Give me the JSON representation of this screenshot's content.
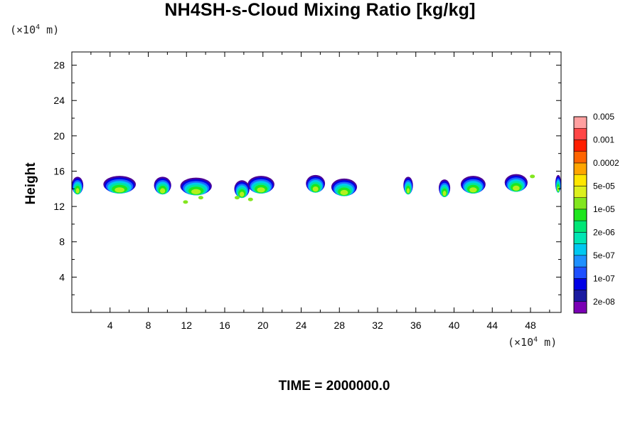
{
  "chart_data": {
    "type": "heatmap",
    "title": "NH4SH-s-Cloud Mixing Ratio [kg/kg]",
    "ylabel": "Height",
    "xunit": {
      "prefix": "(×10",
      "exp": "4",
      "suffix": " m)"
    },
    "yunit": {
      "prefix": "(×10",
      "exp": "4",
      "suffix": " m)"
    },
    "xlim": [
      0,
      51.2
    ],
    "ylim": [
      0,
      29.5
    ],
    "xticks": [
      4,
      8,
      12,
      16,
      20,
      24,
      28,
      32,
      36,
      40,
      44,
      48
    ],
    "yticks": [
      4,
      8,
      12,
      16,
      20,
      24,
      28
    ],
    "time_label": "TIME = 2000000.0",
    "colorbar": {
      "colors": [
        "#7a00b4",
        "#1a1aa0",
        "#0000e6",
        "#1e50ff",
        "#1e90ff",
        "#00c8f0",
        "#00e6b4",
        "#00e676",
        "#1ee61e",
        "#82e61e",
        "#dcf01e",
        "#ffe600",
        "#ffa500",
        "#ff6400",
        "#ff1e00",
        "#ff4646",
        "#ffa0a0"
      ],
      "labels": [
        "2e-08",
        "1e-07",
        "5e-07",
        "2e-06",
        "1e-05",
        "5e-05",
        "0.0002",
        "0.001",
        "0.005"
      ]
    },
    "clouds": [
      {
        "x": 0.6,
        "y": 14.4,
        "w": 1.2
      },
      {
        "x": 5.0,
        "y": 14.5,
        "w": 3.4
      },
      {
        "x": 9.5,
        "y": 14.4,
        "w": 1.8
      },
      {
        "x": 13.0,
        "y": 14.3,
        "w": 3.3
      },
      {
        "x": 19.8,
        "y": 14.5,
        "w": 2.8
      },
      {
        "x": 17.8,
        "y": 14.0,
        "w": 1.6
      },
      {
        "x": 25.5,
        "y": 14.6,
        "w": 2.0
      },
      {
        "x": 28.5,
        "y": 14.2,
        "w": 2.7
      },
      {
        "x": 35.2,
        "y": 14.4,
        "w": 1.0
      },
      {
        "x": 39.0,
        "y": 14.1,
        "w": 1.2
      },
      {
        "x": 42.0,
        "y": 14.5,
        "w": 2.6
      },
      {
        "x": 46.5,
        "y": 14.7,
        "w": 2.4
      },
      {
        "x": 50.9,
        "y": 14.6,
        "w": 0.6
      }
    ],
    "specks": [
      {
        "x": 11.9,
        "y": 12.5
      },
      {
        "x": 13.5,
        "y": 13.0
      },
      {
        "x": 17.3,
        "y": 13.0
      },
      {
        "x": 18.7,
        "y": 12.8
      },
      {
        "x": 48.2,
        "y": 15.4
      }
    ]
  }
}
